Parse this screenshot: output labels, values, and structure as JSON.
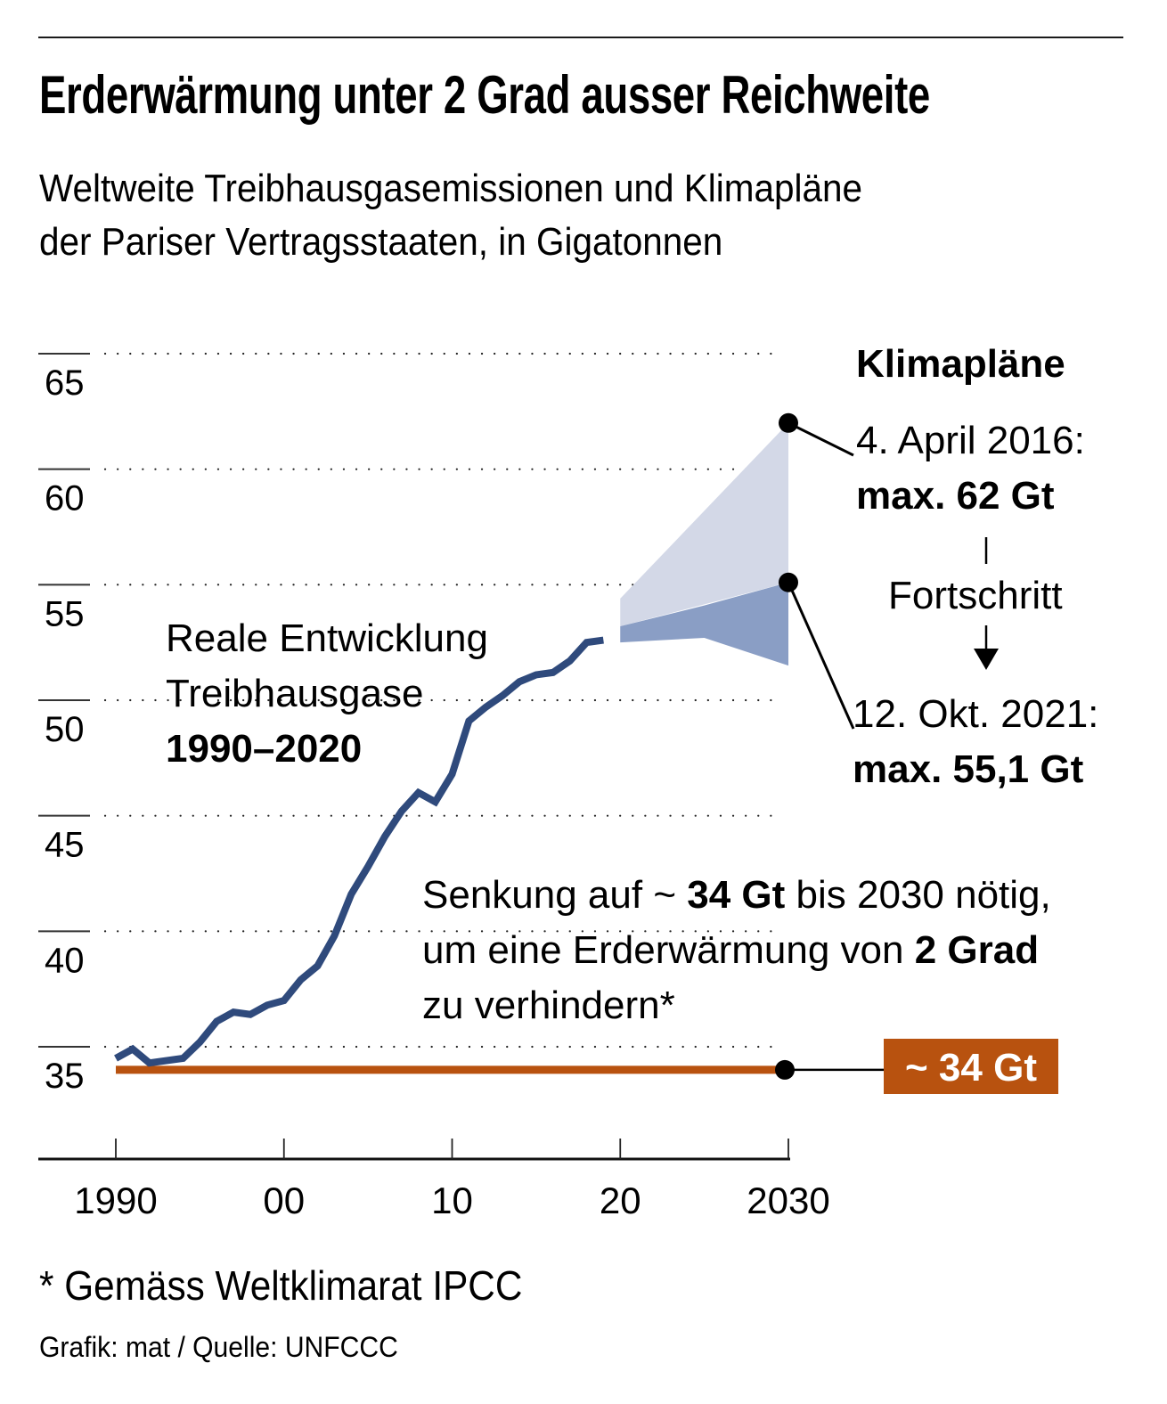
{
  "header": {
    "title": "Erderwärmung unter 2 Grad ausser Reichweite",
    "subtitle_line1": "Weltweite Treibhausgasemissionen und Klimapläne",
    "subtitle_line2": "der Pariser Vertragsstaaten, in Gigatonnen"
  },
  "annotations": {
    "real_line1": "Reale Entwicklung",
    "real_line2": "Treibhausgase",
    "real_line3": "1990–2020",
    "plans_heading": "Klimapläne",
    "plan1_date": "4. April 2016:",
    "plan1_value": "max. 62 Gt",
    "progress_label": "Fortschritt",
    "plan2_date": "12. Okt. 2021:",
    "plan2_value": "max. 55,1 Gt",
    "target_line1_a": "Senkung auf ~ ",
    "target_line1_b": "34 Gt",
    "target_line1_c": " bis 2030 nötig,",
    "target_line2_a": "um eine Erderwärmung von ",
    "target_line2_b": "2 Grad",
    "target_line3": "zu verhindern*",
    "target_tag": "~ 34 Gt"
  },
  "footer": {
    "footnote": "* Gemäss Weltklimarat IPCC",
    "credit": "Grafik: mat / Quelle: UNFCCC"
  },
  "colors": {
    "emissions_line": "#2f4a7c",
    "plan_band_2016": "#d3d8e7",
    "plan_band_2021": "#8a9ec5",
    "target": "#b8520f"
  },
  "chart_data": {
    "type": "line",
    "title": "Erderwärmung unter 2 Grad ausser Reichweite",
    "subtitle": "Weltweite Treibhausgasemissionen und Klimapläne der Pariser Vertragsstaaten, in Gigatonnen",
    "xlabel": "",
    "ylabel": "Gigatonnen",
    "xlim": [
      1990,
      2030
    ],
    "ylim": [
      35,
      65
    ],
    "x_ticks": [
      1990,
      2000,
      2010,
      2020,
      2030
    ],
    "x_tick_labels": [
      "1990",
      "00",
      "10",
      "20",
      "2030"
    ],
    "y_ticks": [
      65,
      60,
      55,
      50,
      45,
      40,
      35
    ],
    "y_tick_labels": [
      "65",
      "60",
      "55",
      "50",
      "45",
      "40",
      "35"
    ],
    "grid": "horizontal-dotted",
    "series": [
      {
        "name": "Reale Entwicklung Treibhausgase 1990–2020",
        "x": [
          1990,
          1991,
          1992,
          1993,
          1994,
          1995,
          1996,
          1997,
          1998,
          1999,
          2000,
          2001,
          2002,
          2003,
          2004,
          2005,
          2006,
          2007,
          2008,
          2009,
          2010,
          2011,
          2012,
          2013,
          2014,
          2015,
          2016,
          2017,
          2018,
          2019
        ],
        "values": [
          34.5,
          34.9,
          34.3,
          34.4,
          34.5,
          35.2,
          36.1,
          36.5,
          36.4,
          36.8,
          37.0,
          37.9,
          38.5,
          39.8,
          41.6,
          42.8,
          44.1,
          45.2,
          46.0,
          45.6,
          46.8,
          49.1,
          49.7,
          50.2,
          50.8,
          51.1,
          51.2,
          51.7,
          52.5,
          52.6
        ]
      },
      {
        "name": "Klimapläne 4. April 2016 (Spanne)",
        "type": "area",
        "x": [
          2020,
          2030
        ],
        "upper": [
          54.4,
          62.0
        ],
        "lower": [
          53.2,
          55.1
        ]
      },
      {
        "name": "Klimapläne 12. Okt. 2021 (Spanne)",
        "type": "area",
        "x": [
          2020,
          2025,
          2030
        ],
        "upper": [
          53.2,
          54.1,
          55.1
        ],
        "lower": [
          52.5,
          52.7,
          51.5
        ]
      },
      {
        "name": "Ziel 2 Grad (~34 Gt bis 2030)",
        "x": [
          1990,
          2030
        ],
        "values": [
          34,
          34
        ]
      }
    ],
    "markers": [
      {
        "label": "4. April 2016: max. 62 Gt",
        "x": 2030,
        "y": 62.0
      },
      {
        "label": "12. Okt. 2021: max. 55,1 Gt",
        "x": 2030,
        "y": 55.1
      },
      {
        "label": "~ 34 Gt",
        "x": 2030,
        "y": 34
      }
    ]
  }
}
